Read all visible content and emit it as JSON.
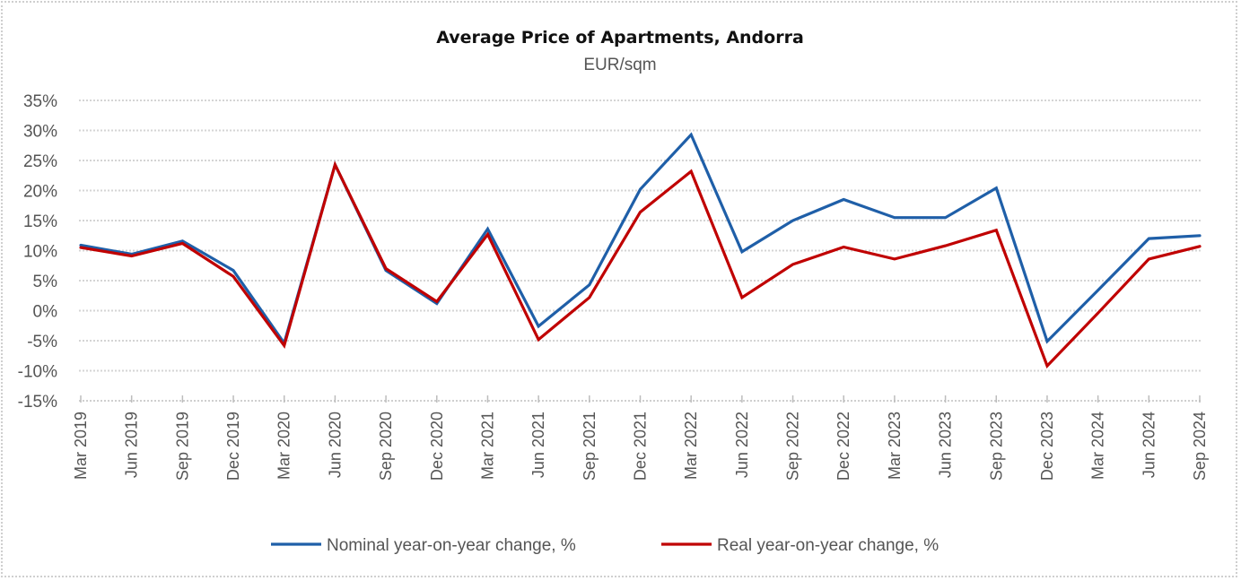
{
  "chart_data": {
    "type": "line",
    "title": "Average Price of Apartments, Andorra",
    "subtitle": "EUR/sqm",
    "xlabel": "",
    "ylabel": "",
    "ylim": [
      -15,
      35
    ],
    "y_ticks": [
      35,
      30,
      25,
      20,
      15,
      10,
      5,
      0,
      -5,
      -10,
      -15
    ],
    "y_tick_labels": [
      "35%",
      "30%",
      "25%",
      "20%",
      "15%",
      "10%",
      "5%",
      "0%",
      "-5%",
      "-10%",
      "-15%"
    ],
    "grid": true,
    "legend_position": "bottom",
    "categories": [
      "Mar 2019",
      "Jun 2019",
      "Sep 2019",
      "Dec 2019",
      "Mar 2020",
      "Jun 2020",
      "Sep 2020",
      "Dec 2020",
      "Mar 2021",
      "Jun 2021",
      "Sep 2021",
      "Dec 2021",
      "Mar 2022",
      "Jun 2022",
      "Sep 2022",
      "Dec 2022",
      "Mar 2023",
      "Jun 2023",
      "Sep 2023",
      "Dec 2023",
      "Mar 2024",
      "Jun 2024",
      "Sep 2024"
    ],
    "series": [
      {
        "name": "Nominal year-on-year change, %",
        "color": "#1f5fa8",
        "values": [
          10.9,
          9.4,
          11.6,
          6.7,
          -5.4,
          24.3,
          6.7,
          1.2,
          13.6,
          -2.6,
          4.3,
          20.2,
          29.3,
          9.8,
          15.0,
          18.5,
          15.5,
          15.5,
          20.4,
          -5.1,
          3.4,
          12.0,
          12.5
        ]
      },
      {
        "name": "Real year-on-year change, %",
        "color": "#c00000",
        "values": [
          10.5,
          9.1,
          11.2,
          5.7,
          -5.8,
          24.3,
          7.0,
          1.5,
          12.7,
          -4.8,
          2.2,
          16.4,
          23.2,
          2.2,
          7.7,
          10.6,
          8.6,
          10.8,
          13.4,
          -9.2,
          -0.4,
          8.6,
          10.7
        ]
      }
    ]
  }
}
